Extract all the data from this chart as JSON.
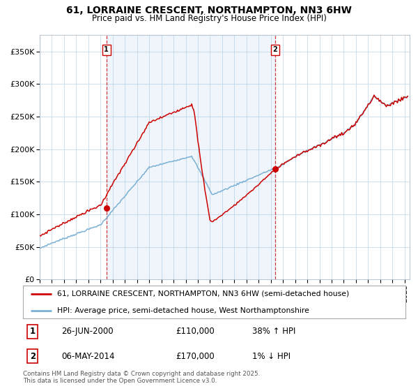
{
  "title": "61, LORRAINE CRESCENT, NORTHAMPTON, NN3 6HW",
  "subtitle": "Price paid vs. HM Land Registry's House Price Index (HPI)",
  "legend_line1": "61, LORRAINE CRESCENT, NORTHAMPTON, NN3 6HW (semi-detached house)",
  "legend_line2": "HPI: Average price, semi-detached house, West Northamptonshire",
  "price_color": "#cc0000",
  "hpi_color": "#7ab0d4",
  "marker_color": "#cc0000",
  "vline_color": "#cc0000",
  "annotation_box_color": "#cc0000",
  "ytick_values": [
    0,
    50000,
    100000,
    150000,
    200000,
    250000,
    300000,
    350000
  ],
  "ylim": [
    0,
    375000
  ],
  "purchase1_price": 110000,
  "purchase1_label": "26-JUN-2000",
  "purchase1_pct": "38% ↑ HPI",
  "purchase2_price": 170000,
  "purchase2_label": "06-MAY-2014",
  "purchase2_pct": "1% ↓ HPI",
  "footer": "Contains HM Land Registry data © Crown copyright and database right 2025.\nThis data is licensed under the Open Government Licence v3.0.",
  "shaded_region_alpha": 0.18,
  "shaded_region_color": "#a8c8e8"
}
